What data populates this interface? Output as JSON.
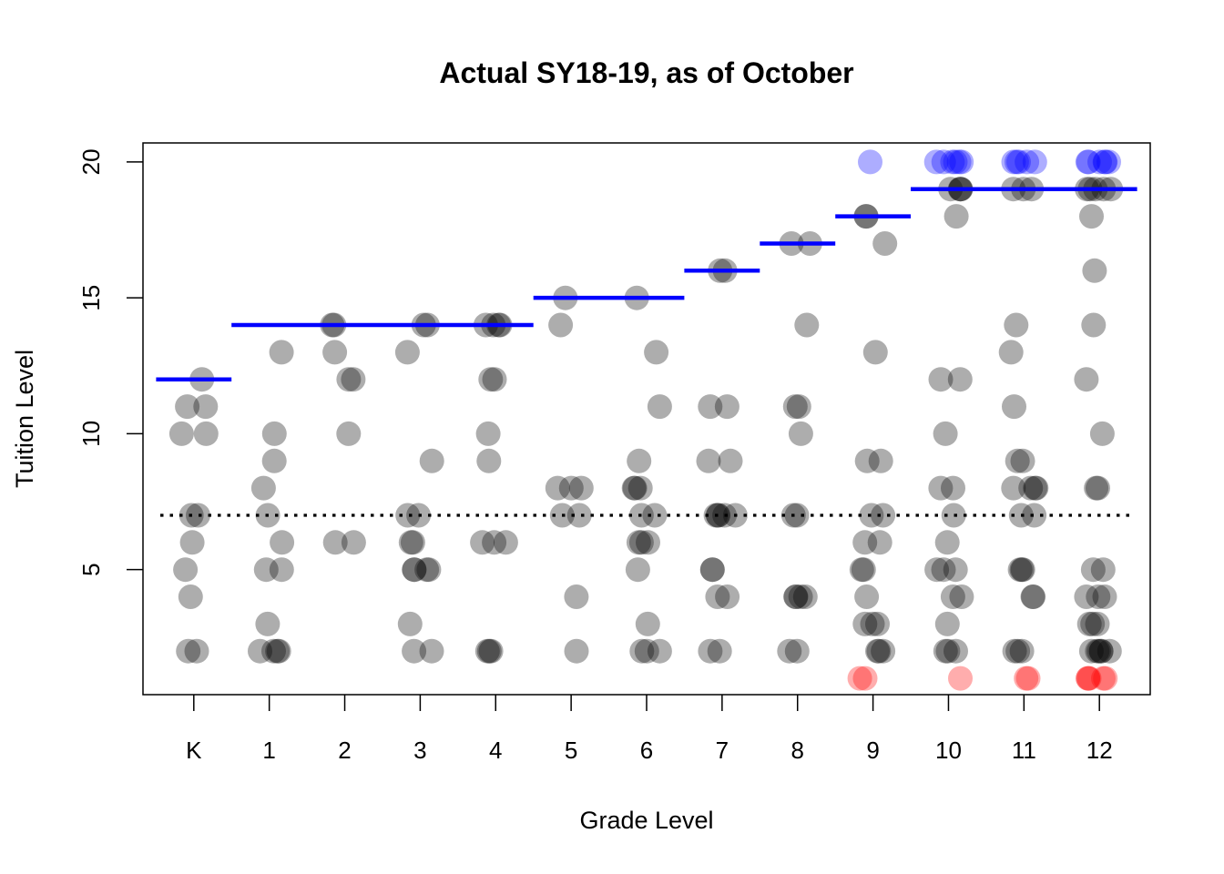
{
  "chart_data": {
    "type": "scatter",
    "title": "Actual SY18-19, as of October",
    "xlabel": "Grade Level",
    "ylabel": "Tuition Level",
    "categories": [
      "K",
      "1",
      "2",
      "3",
      "4",
      "5",
      "6",
      "7",
      "8",
      "9",
      "10",
      "11",
      "12"
    ],
    "y_ticks": [
      "5",
      "10",
      "15",
      "20"
    ],
    "ylim": [
      0.4,
      20.7
    ],
    "grid": false,
    "colors": {
      "point": "#000000",
      "above": "#0000ff",
      "below": "#ff0000",
      "target_line": "#0000ff",
      "reference_line": "#000000"
    },
    "reference_line": {
      "y": 7,
      "style": "dotted"
    },
    "target_levels": [
      {
        "from": "K",
        "to": "K",
        "y": 12
      },
      {
        "from": "1",
        "to": "4",
        "y": 14
      },
      {
        "from": "5",
        "to": "6",
        "y": 15
      },
      {
        "from": "7",
        "to": "7",
        "y": 16
      },
      {
        "from": "8",
        "to": "8",
        "y": 17
      },
      {
        "from": "9",
        "to": "9",
        "y": 18
      },
      {
        "from": "10",
        "to": "12",
        "y": 19
      }
    ],
    "series": [
      {
        "color": "#000000",
        "points": [
          [
            "K",
            12
          ],
          [
            "K",
            11
          ],
          [
            "K",
            11
          ],
          [
            "K",
            10
          ],
          [
            "K",
            10
          ],
          [
            "K",
            7
          ],
          [
            "K",
            7
          ],
          [
            "K",
            6
          ],
          [
            "K",
            5
          ],
          [
            "K",
            4
          ],
          [
            "K",
            2
          ],
          [
            "K",
            2
          ],
          [
            "1",
            13
          ],
          [
            "1",
            10
          ],
          [
            "1",
            9
          ],
          [
            "1",
            8
          ],
          [
            "1",
            7
          ],
          [
            "1",
            6
          ],
          [
            "1",
            5
          ],
          [
            "1",
            5
          ],
          [
            "1",
            3
          ],
          [
            "1",
            2
          ],
          [
            "1",
            2
          ],
          [
            "1",
            2
          ],
          [
            "1",
            2
          ],
          [
            "2",
            14
          ],
          [
            "2",
            14
          ],
          [
            "2",
            13
          ],
          [
            "2",
            12
          ],
          [
            "2",
            12
          ],
          [
            "2",
            10
          ],
          [
            "2",
            6
          ],
          [
            "2",
            6
          ],
          [
            "3",
            14
          ],
          [
            "3",
            14
          ],
          [
            "3",
            13
          ],
          [
            "3",
            9
          ],
          [
            "3",
            7
          ],
          [
            "3",
            7
          ],
          [
            "3",
            6
          ],
          [
            "3",
            6
          ],
          [
            "3",
            5
          ],
          [
            "3",
            5
          ],
          [
            "3",
            5
          ],
          [
            "3",
            5
          ],
          [
            "3",
            3
          ],
          [
            "3",
            2
          ],
          [
            "3",
            2
          ],
          [
            "4",
            14
          ],
          [
            "4",
            14
          ],
          [
            "4",
            14
          ],
          [
            "4",
            14
          ],
          [
            "4",
            12
          ],
          [
            "4",
            12
          ],
          [
            "4",
            10
          ],
          [
            "4",
            9
          ],
          [
            "4",
            6
          ],
          [
            "4",
            6
          ],
          [
            "4",
            6
          ],
          [
            "4",
            2
          ],
          [
            "4",
            2
          ],
          [
            "4",
            2
          ],
          [
            "5",
            15
          ],
          [
            "5",
            14
          ],
          [
            "5",
            8
          ],
          [
            "5",
            8
          ],
          [
            "5",
            8
          ],
          [
            "5",
            7
          ],
          [
            "5",
            7
          ],
          [
            "5",
            4
          ],
          [
            "5",
            2
          ],
          [
            "6",
            15
          ],
          [
            "6",
            13
          ],
          [
            "6",
            11
          ],
          [
            "6",
            9
          ],
          [
            "6",
            8
          ],
          [
            "6",
            8
          ],
          [
            "6",
            8
          ],
          [
            "6",
            7
          ],
          [
            "6",
            7
          ],
          [
            "6",
            6
          ],
          [
            "6",
            6
          ],
          [
            "6",
            6
          ],
          [
            "6",
            5
          ],
          [
            "6",
            3
          ],
          [
            "6",
            2
          ],
          [
            "6",
            2
          ],
          [
            "6",
            2
          ],
          [
            "7",
            16
          ],
          [
            "7",
            16
          ],
          [
            "7",
            11
          ],
          [
            "7",
            11
          ],
          [
            "7",
            9
          ],
          [
            "7",
            9
          ],
          [
            "7",
            7
          ],
          [
            "7",
            7
          ],
          [
            "7",
            7
          ],
          [
            "7",
            7
          ],
          [
            "7",
            7
          ],
          [
            "7",
            5
          ],
          [
            "7",
            5
          ],
          [
            "7",
            4
          ],
          [
            "7",
            4
          ],
          [
            "7",
            2
          ],
          [
            "7",
            2
          ],
          [
            "8",
            17
          ],
          [
            "8",
            17
          ],
          [
            "8",
            14
          ],
          [
            "8",
            11
          ],
          [
            "8",
            11
          ],
          [
            "8",
            10
          ],
          [
            "8",
            7
          ],
          [
            "8",
            7
          ],
          [
            "8",
            4
          ],
          [
            "8",
            4
          ],
          [
            "8",
            4
          ],
          [
            "8",
            4
          ],
          [
            "8",
            2
          ],
          [
            "8",
            2
          ],
          [
            "9",
            18
          ],
          [
            "9",
            18
          ],
          [
            "9",
            17
          ],
          [
            "9",
            13
          ],
          [
            "9",
            9
          ],
          [
            "9",
            9
          ],
          [
            "9",
            7
          ],
          [
            "9",
            7
          ],
          [
            "9",
            6
          ],
          [
            "9",
            6
          ],
          [
            "9",
            5
          ],
          [
            "9",
            5
          ],
          [
            "9",
            4
          ],
          [
            "9",
            3
          ],
          [
            "9",
            3
          ],
          [
            "9",
            3
          ],
          [
            "9",
            2
          ],
          [
            "9",
            2
          ],
          [
            "9",
            2
          ],
          [
            "10",
            19
          ],
          [
            "10",
            19
          ],
          [
            "10",
            19
          ],
          [
            "10",
            19
          ],
          [
            "10",
            18
          ],
          [
            "10",
            12
          ],
          [
            "10",
            12
          ],
          [
            "10",
            10
          ],
          [
            "10",
            8
          ],
          [
            "10",
            8
          ],
          [
            "10",
            7
          ],
          [
            "10",
            6
          ],
          [
            "10",
            5
          ],
          [
            "10",
            5
          ],
          [
            "10",
            5
          ],
          [
            "10",
            4
          ],
          [
            "10",
            4
          ],
          [
            "10",
            3
          ],
          [
            "10",
            2
          ],
          [
            "10",
            2
          ],
          [
            "10",
            2
          ],
          [
            "11",
            19
          ],
          [
            "11",
            19
          ],
          [
            "11",
            19
          ],
          [
            "11",
            14
          ],
          [
            "11",
            13
          ],
          [
            "11",
            11
          ],
          [
            "11",
            9
          ],
          [
            "11",
            9
          ],
          [
            "11",
            8
          ],
          [
            "11",
            8
          ],
          [
            "11",
            8
          ],
          [
            "11",
            8
          ],
          [
            "11",
            7
          ],
          [
            "11",
            7
          ],
          [
            "11",
            5
          ],
          [
            "11",
            5
          ],
          [
            "11",
            5
          ],
          [
            "11",
            4
          ],
          [
            "11",
            4
          ],
          [
            "11",
            2
          ],
          [
            "11",
            2
          ],
          [
            "11",
            2
          ],
          [
            "12",
            19
          ],
          [
            "12",
            19
          ],
          [
            "12",
            19
          ],
          [
            "12",
            19
          ],
          [
            "12",
            19
          ],
          [
            "12",
            18
          ],
          [
            "12",
            16
          ],
          [
            "12",
            14
          ],
          [
            "12",
            12
          ],
          [
            "12",
            10
          ],
          [
            "12",
            8
          ],
          [
            "12",
            8
          ],
          [
            "12",
            5
          ],
          [
            "12",
            5
          ],
          [
            "12",
            4
          ],
          [
            "12",
            4
          ],
          [
            "12",
            4
          ],
          [
            "12",
            3
          ],
          [
            "12",
            3
          ],
          [
            "12",
            3
          ],
          [
            "12",
            2
          ],
          [
            "12",
            2
          ],
          [
            "12",
            2
          ],
          [
            "12",
            2
          ],
          [
            "12",
            2
          ],
          [
            "12",
            2
          ]
        ]
      },
      {
        "color": "#0000ff",
        "points": [
          [
            "9",
            20
          ],
          [
            "10",
            20
          ],
          [
            "10",
            20
          ],
          [
            "10",
            20
          ],
          [
            "10",
            20
          ],
          [
            "10",
            20
          ],
          [
            "10",
            20
          ],
          [
            "11",
            20
          ],
          [
            "11",
            20
          ],
          [
            "11",
            20
          ],
          [
            "11",
            20
          ],
          [
            "11",
            20
          ],
          [
            "12",
            20
          ],
          [
            "12",
            20
          ],
          [
            "12",
            20
          ],
          [
            "12",
            20
          ],
          [
            "12",
            20
          ],
          [
            "12",
            20
          ]
        ]
      },
      {
        "color": "#ff0000",
        "points": [
          [
            "9",
            1
          ],
          [
            "9",
            1
          ],
          [
            "10",
            1
          ],
          [
            "11",
            1
          ],
          [
            "11",
            1
          ],
          [
            "12",
            1
          ],
          [
            "12",
            1
          ],
          [
            "12",
            1
          ],
          [
            "12",
            1
          ],
          [
            "12",
            1
          ]
        ]
      }
    ]
  }
}
